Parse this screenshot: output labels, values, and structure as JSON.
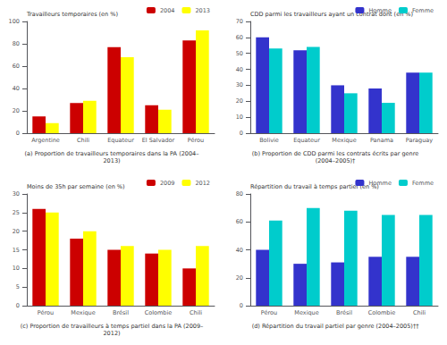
{
  "chart_data": [
    {
      "type": "bar",
      "title": "(a) Proportion de travailleurs temporaires dans la PA (2004–\n2013)",
      "ylabel": "Travailleurs temporaires (en %)",
      "categories": [
        "Argentine",
        "Chili",
        "Equateur",
        "El Salvador",
        "Pérou"
      ],
      "series": [
        {
          "name": "2004",
          "color": "#CC0000",
          "values": [
            15,
            27,
            77,
            25,
            83
          ]
        },
        {
          "name": "2013",
          "color": "#FFFF00",
          "values": [
            9,
            29,
            68,
            21,
            92
          ]
        }
      ],
      "ylim": [
        0,
        100
      ],
      "yticks": [
        0,
        20,
        40,
        60,
        80,
        100
      ],
      "grid": false,
      "legend": "upper right"
    },
    {
      "type": "bar",
      "title": "(b) Proportion de CDD parmi les contrats écrits par genre\n(2004–2005)†",
      "ylabel": "CDD parmi les travailleurs ayant un contrat dont (en %)",
      "categories": [
        "Bolivie",
        "Equateur",
        "Mexique",
        "Panama",
        "Paraguay"
      ],
      "series": [
        {
          "name": "Homme",
          "color": "#3333CC",
          "values": [
            60,
            52,
            30,
            28,
            38
          ]
        },
        {
          "name": "Femme",
          "color": "#00CCCC",
          "values": [
            53,
            54,
            25,
            19,
            38
          ]
        }
      ],
      "ylim": [
        0,
        70
      ],
      "yticks": [
        0,
        10,
        20,
        30,
        40,
        50,
        60,
        70
      ],
      "grid": false,
      "legend": "upper right"
    },
    {
      "type": "bar",
      "title": "(c) Proportion de travailleurs à temps partiel dans la PA (2009–\n2012)",
      "ylabel": "Moins de 35h par semaine (en %)",
      "categories": [
        "Pérou",
        "Mexique",
        "Brésil",
        "Colombie",
        "Chili"
      ],
      "series": [
        {
          "name": "2009",
          "color": "#CC0000",
          "values": [
            26,
            18,
            15,
            14,
            10
          ]
        },
        {
          "name": "2012",
          "color": "#FFFF00",
          "values": [
            25,
            20,
            16,
            15,
            16
          ]
        }
      ],
      "ylim": [
        0,
        30
      ],
      "yticks": [
        0,
        5,
        10,
        15,
        20,
        25,
        30
      ],
      "grid": false,
      "legend": "upper right"
    },
    {
      "type": "bar",
      "title": "(d) Répartition du travail partiel par genre (2004–2005)††",
      "ylabel": "Répartition du travail à temps partiel (en %)",
      "categories": [
        "Pérou",
        "Mexique",
        "Brésil",
        "Colombie",
        "Chili"
      ],
      "series": [
        {
          "name": "Homme",
          "color": "#3333CC",
          "values": [
            40,
            30,
            31,
            35,
            35
          ]
        },
        {
          "name": "Femme",
          "color": "#00CCCC",
          "values": [
            61,
            70,
            68,
            65,
            65
          ]
        }
      ],
      "ylim": [
        0,
        80
      ],
      "yticks": [
        0,
        20,
        40,
        60,
        80
      ],
      "grid": false,
      "legend": "upper right"
    }
  ]
}
